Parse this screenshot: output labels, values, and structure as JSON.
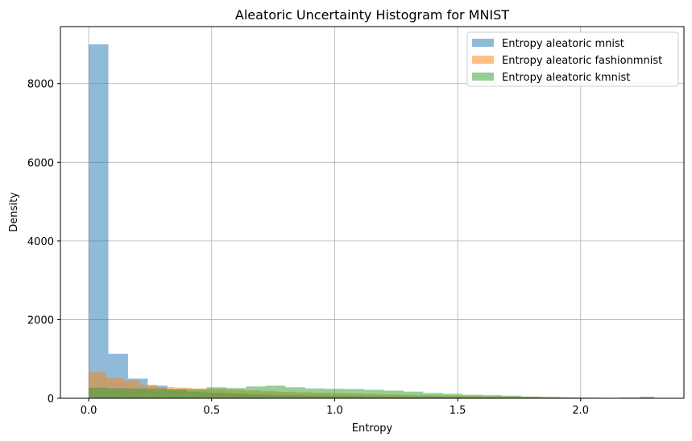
{
  "chart_data": {
    "type": "histogram",
    "title": "Aleatoric Uncertainty Histogram for MNIST",
    "xlabel": "Entropy",
    "ylabel": "Density",
    "xlim": [
      -0.115,
      2.42
    ],
    "ylim": [
      0,
      9450
    ],
    "xticks": [
      {
        "value": 0.0,
        "label": "0.0"
      },
      {
        "value": 0.5,
        "label": "0.5"
      },
      {
        "value": 1.0,
        "label": "1.0"
      },
      {
        "value": 1.5,
        "label": "1.5"
      },
      {
        "value": 2.0,
        "label": "2.0"
      }
    ],
    "yticks": [
      {
        "value": 0,
        "label": "0"
      },
      {
        "value": 2000,
        "label": "2000"
      },
      {
        "value": 4000,
        "label": "4000"
      },
      {
        "value": 6000,
        "label": "6000"
      },
      {
        "value": 8000,
        "label": "8000"
      }
    ],
    "grid": true,
    "legend_position": "top-right",
    "series": [
      {
        "name": "Entropy aleatoric mnist",
        "color": "#1f77b4",
        "opacity": 0.5,
        "bin_edges": [
          0.0,
          0.08,
          0.16,
          0.24,
          0.32,
          0.4,
          0.48,
          0.56,
          0.64,
          0.72,
          0.8,
          0.88,
          0.96,
          1.04,
          1.12,
          1.2,
          1.28,
          1.36,
          1.44,
          1.52,
          1.6,
          1.68,
          1.76,
          1.84,
          1.92,
          2.0,
          2.08,
          2.16,
          2.24
        ],
        "values": [
          9000,
          1130,
          500,
          320,
          220,
          170,
          140,
          120,
          100,
          90,
          80,
          70,
          60,
          55,
          50,
          45,
          40,
          35,
          30,
          25,
          20,
          15,
          12,
          10,
          8,
          6,
          4,
          3
        ]
      },
      {
        "name": "Entropy aleatoric fashionmnist",
        "color": "#ff7f0e",
        "opacity": 0.5,
        "bin_edges": [
          0.0,
          0.07,
          0.14,
          0.21,
          0.28,
          0.35,
          0.42,
          0.49,
          0.56,
          0.63,
          0.7,
          0.77,
          0.84,
          0.91,
          0.98,
          1.05,
          1.12,
          1.19,
          1.26,
          1.33,
          1.4,
          1.47,
          1.54,
          1.61,
          1.68,
          1.75,
          1.82,
          1.89,
          1.96,
          2.03,
          2.1,
          2.17,
          2.24
        ],
        "values": [
          670,
          520,
          450,
          340,
          290,
          270,
          250,
          240,
          220,
          200,
          180,
          165,
          150,
          140,
          130,
          120,
          110,
          100,
          90,
          80,
          72,
          65,
          58,
          50,
          42,
          35,
          28,
          20,
          14,
          9,
          5,
          3
        ]
      },
      {
        "name": "Entropy aleatoric kmnist",
        "color": "#2ca02c",
        "opacity": 0.5,
        "bin_edges": [
          0.0,
          0.08,
          0.16,
          0.24,
          0.32,
          0.4,
          0.48,
          0.56,
          0.64,
          0.72,
          0.8,
          0.88,
          0.96,
          1.04,
          1.12,
          1.2,
          1.28,
          1.36,
          1.44,
          1.52,
          1.6,
          1.68,
          1.76,
          1.84,
          1.92,
          2.0,
          2.08,
          2.16,
          2.24,
          2.3
        ],
        "values": [
          270,
          255,
          250,
          240,
          235,
          230,
          280,
          260,
          300,
          320,
          280,
          250,
          240,
          235,
          215,
          195,
          170,
          135,
          115,
          90,
          80,
          65,
          45,
          35,
          22,
          16,
          12,
          20,
          40
        ]
      }
    ]
  }
}
